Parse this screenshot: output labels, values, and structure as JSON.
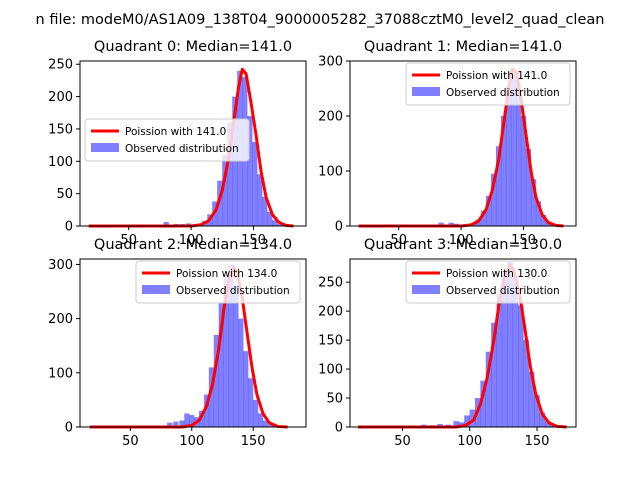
{
  "figure": {
    "suptitle": "n file: modeM0/AS1A09_138T04_9000005282_37088cztM0_level2_quad_clean"
  },
  "colors": {
    "poisson": "#ff0000",
    "observed": "#0000ff",
    "observed_alpha": 0.5
  },
  "chart_data": [
    {
      "type": "bar",
      "title": "Quadrant 0: Median=141.0",
      "xlabel": "",
      "ylabel": "",
      "xlim": [
        11,
        192
      ],
      "ylim": [
        0,
        255
      ],
      "xticks": [
        50,
        100,
        150
      ],
      "yticks": [
        0,
        50,
        100,
        150,
        200,
        250
      ],
      "grid": false,
      "legend_loc": "center-left",
      "median": 141.0,
      "series": [
        {
          "name": "Poission with 141.0",
          "kind": "line",
          "x": [
            18,
            60,
            100,
            108,
            114,
            120,
            125,
            130,
            134,
            138,
            141,
            144,
            148,
            152,
            156,
            160,
            165,
            170,
            176,
            182
          ],
          "y": [
            0,
            0,
            0,
            2,
            8,
            25,
            55,
            105,
            160,
            215,
            242,
            235,
            190,
            140,
            85,
            45,
            18,
            6,
            1,
            0
          ]
        },
        {
          "name": "Observed distribution",
          "kind": "histogram",
          "x": [
            80,
            88,
            93,
            98,
            103,
            107,
            111,
            115,
            119,
            123,
            127,
            131,
            135,
            139,
            143,
            147,
            151,
            155,
            159,
            163,
            167,
            171,
            175
          ],
          "y": [
            6,
            3,
            3,
            4,
            2,
            3,
            8,
            18,
            38,
            70,
            110,
            160,
            200,
            240,
            230,
            170,
            130,
            80,
            45,
            22,
            9,
            3,
            1
          ]
        }
      ]
    },
    {
      "type": "bar",
      "title": "Quadrant 1: Median=141.0",
      "xlabel": "",
      "ylabel": "",
      "xlim": [
        11,
        192
      ],
      "ylim": [
        0,
        300
      ],
      "xticks": [
        50,
        100,
        150
      ],
      "yticks": [
        0,
        100,
        200,
        300
      ],
      "grid": false,
      "legend_loc": "upper-right",
      "median": 141.0,
      "series": [
        {
          "name": "Poission with 141.0",
          "kind": "line",
          "x": [
            18,
            60,
            100,
            108,
            114,
            120,
            125,
            130,
            134,
            138,
            141,
            144,
            148,
            152,
            156,
            160,
            165,
            170,
            176,
            182
          ],
          "y": [
            0,
            0,
            0,
            2,
            9,
            30,
            65,
            120,
            185,
            250,
            285,
            280,
            230,
            165,
            100,
            52,
            20,
            6,
            1,
            0
          ]
        },
        {
          "name": "Observed distribution",
          "kind": "histogram",
          "x": [
            84,
            92,
            96,
            104,
            110,
            114,
            118,
            122,
            126,
            130,
            134,
            138,
            142,
            146,
            150,
            154,
            158,
            162,
            166,
            170,
            174
          ],
          "y": [
            6,
            6,
            4,
            3,
            5,
            12,
            28,
            55,
            95,
            145,
            200,
            255,
            280,
            260,
            200,
            140,
            85,
            45,
            20,
            8,
            2
          ]
        }
      ]
    },
    {
      "type": "bar",
      "title": "Quadrant 2: Median=134.0",
      "xlabel": "",
      "ylabel": "",
      "xlim": [
        9,
        193
      ],
      "ylim": [
        0,
        310
      ],
      "xticks": [
        50,
        100,
        150
      ],
      "yticks": [
        0,
        100,
        200,
        300
      ],
      "grid": false,
      "legend_loc": "upper-right",
      "median": 134.0,
      "series": [
        {
          "name": "Poission with 134.0",
          "kind": "line",
          "x": [
            17,
            60,
            92,
            100,
            106,
            112,
            117,
            122,
            126,
            130,
            134,
            137,
            141,
            145,
            149,
            153,
            158,
            163,
            170,
            178
          ],
          "y": [
            0,
            0,
            0,
            3,
            12,
            38,
            80,
            145,
            215,
            270,
            295,
            285,
            240,
            175,
            110,
            60,
            25,
            8,
            1,
            0
          ]
        },
        {
          "name": "Observed distribution",
          "kind": "histogram",
          "x": [
            82,
            87,
            92,
            96,
            100,
            104,
            108,
            112,
            116,
            120,
            124,
            128,
            132,
            136,
            140,
            144,
            148,
            152,
            156,
            160,
            164,
            168,
            172
          ],
          "y": [
            8,
            10,
            12,
            25,
            22,
            18,
            30,
            60,
            110,
            170,
            230,
            280,
            300,
            260,
            200,
            140,
            90,
            50,
            25,
            12,
            5,
            2,
            1
          ]
        }
      ]
    },
    {
      "type": "bar",
      "title": "Quadrant 3: Median=130.0",
      "xlabel": "",
      "ylabel": "",
      "xlim": [
        11,
        179
      ],
      "ylim": [
        0,
        290
      ],
      "xticks": [
        50,
        100,
        150
      ],
      "yticks": [
        0,
        50,
        100,
        150,
        200,
        250
      ],
      "grid": false,
      "legend_loc": "upper-right",
      "median": 130.0,
      "series": [
        {
          "name": "Poission with 130.0",
          "kind": "line",
          "x": [
            17,
            60,
            90,
            97,
            103,
            108,
            113,
            118,
            122,
            126,
            130,
            133,
            137,
            141,
            145,
            149,
            154,
            159,
            165,
            172
          ],
          "y": [
            0,
            0,
            0,
            3,
            12,
            40,
            85,
            150,
            215,
            260,
            280,
            270,
            230,
            170,
            105,
            58,
            22,
            7,
            1,
            0
          ]
        },
        {
          "name": "Observed distribution",
          "kind": "histogram",
          "x": [
            66,
            72,
            78,
            84,
            90,
            94,
            98,
            102,
            106,
            110,
            114,
            118,
            122,
            126,
            130,
            134,
            138,
            142,
            146,
            150,
            154,
            158,
            162
          ],
          "y": [
            4,
            3,
            5,
            4,
            10,
            8,
            20,
            30,
            50,
            80,
            130,
            180,
            230,
            270,
            285,
            260,
            210,
            150,
            95,
            55,
            25,
            10,
            3
          ]
        }
      ]
    }
  ]
}
